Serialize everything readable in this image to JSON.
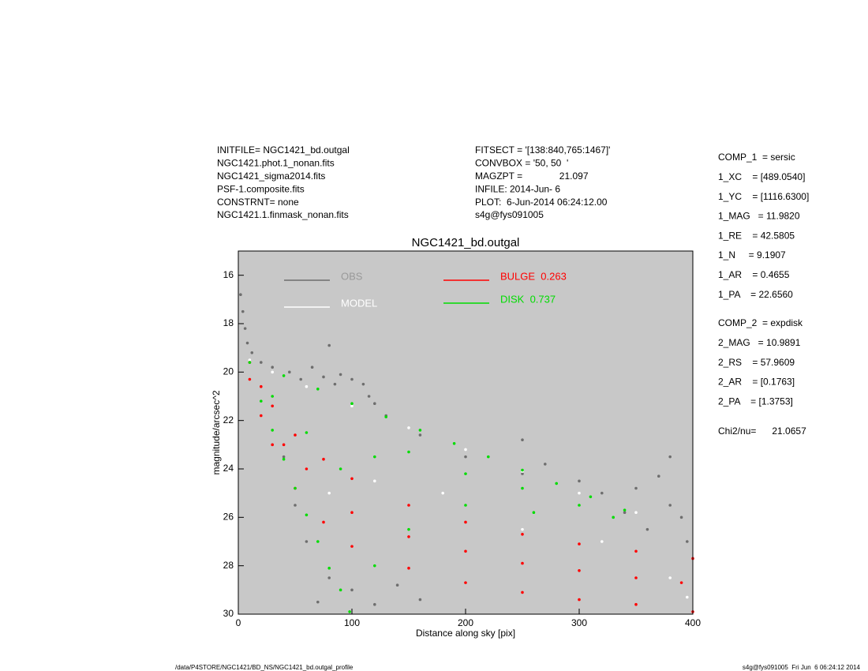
{
  "header_left": [
    "INITFILE= NGC1421_bd.outgal",
    "NGC1421.phot.1_nonan.fits",
    "NGC1421_sigma2014.fits",
    "PSF-1.composite.fits",
    "CONSTRNT= none",
    "NGC1421.1.finmask_nonan.fits"
  ],
  "header_middle": [
    "FITSECT = '[138:840,765:1467]'",
    "CONVBOX = '50, 50  '",
    "MAGZPT =              21.097",
    "INFILE: 2014-Jun- 6",
    "PLOT:  6-Jun-2014 06:24:12.00",
    "s4g@fys091005"
  ],
  "fit_params_1": [
    "COMP_1  = sersic",
    "1_XC    = [489.0540]",
    "1_YC    = [1116.6300]",
    "1_MAG   = 11.9820",
    "1_RE    = 42.5805",
    "1_N     = 9.1907",
    "1_AR    = 0.4655",
    "1_PA    = 22.6560"
  ],
  "fit_params_2": [
    "COMP_2  = expdisk",
    "2_MAG   = 10.9891",
    "2_RS    = 57.9609",
    "2_AR    = [0.1763]",
    "2_PA    = [1.3753]"
  ],
  "chi2": "Chi2/nu=      21.0657",
  "footer_left": "/data/P4STORE/NGC1421/BD_NS/NGC1421_bd.outgal_profile",
  "footer_right": "s4g@fys091005  Fri Jun  6 06:24:12 2014",
  "chart_data": {
    "type": "scatter",
    "title": "NGC1421_bd.outgal",
    "x_label": "Distance along sky [pix]",
    "y_label": "magnitude/arcsec^2",
    "xlim": [
      0,
      400
    ],
    "xticks": [
      0,
      100,
      200,
      300,
      400
    ],
    "ylim": [
      30,
      15
    ],
    "yticks": [
      16,
      18,
      20,
      22,
      24,
      26,
      28,
      30
    ],
    "background": "#c8c8c8",
    "series": [
      {
        "name": "OBS",
        "color": "#6e6e6e",
        "x": [
          2,
          4,
          6,
          8,
          12,
          20,
          30,
          45,
          55,
          65,
          75,
          80,
          85,
          90,
          100,
          110,
          115,
          120,
          130,
          160,
          200,
          250,
          270,
          300,
          320,
          350,
          370,
          380,
          390,
          395,
          360,
          340,
          60,
          80,
          100,
          70,
          120,
          140,
          160,
          50,
          40,
          250,
          380
        ],
        "values": [
          16.8,
          17.5,
          18.2,
          18.8,
          19.2,
          19.6,
          19.8,
          20,
          20.3,
          19.8,
          20.2,
          18.9,
          20.5,
          20.1,
          20.3,
          20.5,
          21,
          21.3,
          21.8,
          22.6,
          23.5,
          24.2,
          23.8,
          24.5,
          25,
          24.8,
          24.3,
          25.5,
          26,
          27,
          26.5,
          25.8,
          27,
          28.5,
          29,
          29.5,
          29.6,
          28.8,
          29.4,
          25.5,
          23.5,
          22.8,
          23.5
        ]
      },
      {
        "name": "MODEL",
        "color": "#ffffff",
        "x": [
          10,
          30,
          60,
          100,
          150,
          200,
          250,
          300,
          350,
          120,
          180,
          250,
          320,
          380,
          395,
          60,
          80
        ],
        "values": [
          19.5,
          20,
          20.6,
          21.4,
          22.3,
          23.2,
          24.1,
          25,
          25.8,
          24.5,
          25,
          26.5,
          27,
          28.5,
          29.3,
          24,
          25
        ]
      },
      {
        "name": "BULGE  0.263",
        "color": "#ff0000",
        "x": [
          10,
          20,
          30,
          50,
          75,
          100,
          150,
          200,
          250,
          300,
          350,
          400,
          10,
          20,
          30,
          50,
          75,
          100,
          150,
          200,
          250,
          300,
          350,
          400,
          40,
          60,
          100,
          150,
          200,
          250,
          300,
          350,
          390
        ],
        "values": [
          19.6,
          20.6,
          21.4,
          22.6,
          23.6,
          24.4,
          25.5,
          26.2,
          26.7,
          27.1,
          27.4,
          27.7,
          20.3,
          21.8,
          23,
          24.8,
          26.2,
          27.2,
          28.1,
          28.7,
          29.1,
          29.4,
          29.6,
          29.9,
          23,
          24,
          25.8,
          26.8,
          27.4,
          27.9,
          28.2,
          28.5,
          28.7
        ]
      },
      {
        "name": "DISK  0.737",
        "color": "#00dd00",
        "x": [
          10,
          40,
          70,
          100,
          130,
          160,
          190,
          220,
          250,
          280,
          310,
          340,
          20,
          30,
          40,
          50,
          60,
          70,
          80,
          90,
          98,
          30,
          60,
          90,
          120,
          150,
          200,
          250,
          300,
          120,
          150,
          200,
          260,
          330
        ],
        "values": [
          19.6,
          20.15,
          20.7,
          21.3,
          21.85,
          22.4,
          22.95,
          23.5,
          24.05,
          24.6,
          25.15,
          25.7,
          21.2,
          22.4,
          23.6,
          24.8,
          25.9,
          27,
          28.1,
          29,
          29.9,
          21,
          22.5,
          24,
          23.5,
          23.3,
          24.2,
          24.8,
          25.5,
          28,
          26.5,
          25.5,
          25.8,
          26
        ]
      }
    ]
  }
}
